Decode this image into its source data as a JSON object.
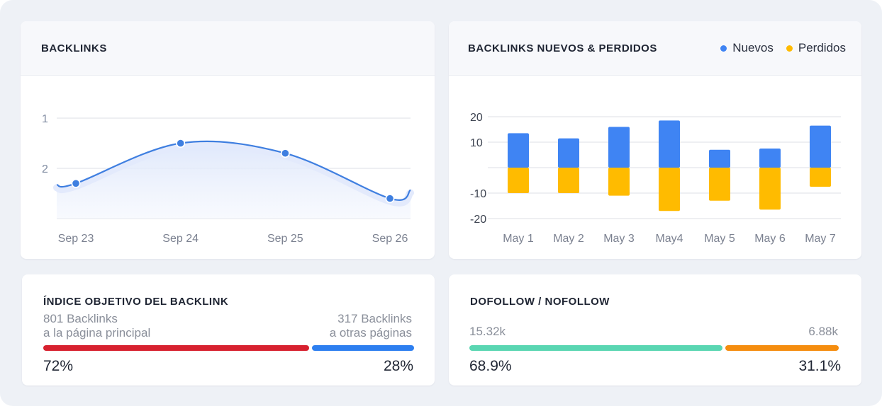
{
  "backlinks_card": {
    "title": "BACKLINKS",
    "chart_data": {
      "type": "area",
      "categories": [
        "Sep 23",
        "Sep 24",
        "Sep 25",
        "Sep 26"
      ],
      "y_ticks": [
        "1",
        "2"
      ],
      "series": [
        {
          "values": [
            2.3,
            1.5,
            1.7,
            2.6
          ]
        }
      ],
      "ylim": [
        1,
        3
      ],
      "y_reversed": true,
      "grid": true,
      "color": "#3f7fe0"
    }
  },
  "new_lost_card": {
    "title": "BACKLINKS NUEVOS & PERDIDOS",
    "chart_data": {
      "type": "bar",
      "categories": [
        "May 1",
        "May 2",
        "May 3",
        "May4",
        "May 5",
        "May 6",
        "May 7"
      ],
      "y_ticks": [
        "20",
        "10",
        "-10",
        "-20"
      ],
      "ylim": [
        -20,
        20
      ],
      "series": [
        {
          "name": "Nuevos",
          "color": "#3f84f3",
          "values": [
            13.5,
            11.5,
            16,
            18.5,
            7,
            7.5,
            16.5
          ]
        },
        {
          "name": "Perdidos",
          "color": "#ffbb00",
          "values": [
            -10,
            -10,
            -11,
            -17,
            -13,
            -16.5,
            -7.5
          ]
        }
      ],
      "legend_position": "top-right",
      "grid": true
    }
  },
  "index_card": {
    "title": "ÍNDICE OBJETIVO DEL BACKLINK",
    "left_count": "801 Backlinks",
    "left_label": "a la página principal",
    "right_count": "317 Backlinks",
    "right_label": "a otras páginas",
    "left_pct_label": "72%",
    "right_pct_label": "28%",
    "left_share": 0.72,
    "left_color": "#d7212f",
    "right_color": "#2d7ff0"
  },
  "follow_card": {
    "title": "DOFOLLOW / NOFOLLOW",
    "left_count": "15.32k",
    "right_count": "6.88k",
    "left_pct_label": "68.9%",
    "right_pct_label": "31.1%",
    "left_share": 0.689,
    "left_color": "#5ad6b2",
    "right_color": "#f58d0f"
  }
}
